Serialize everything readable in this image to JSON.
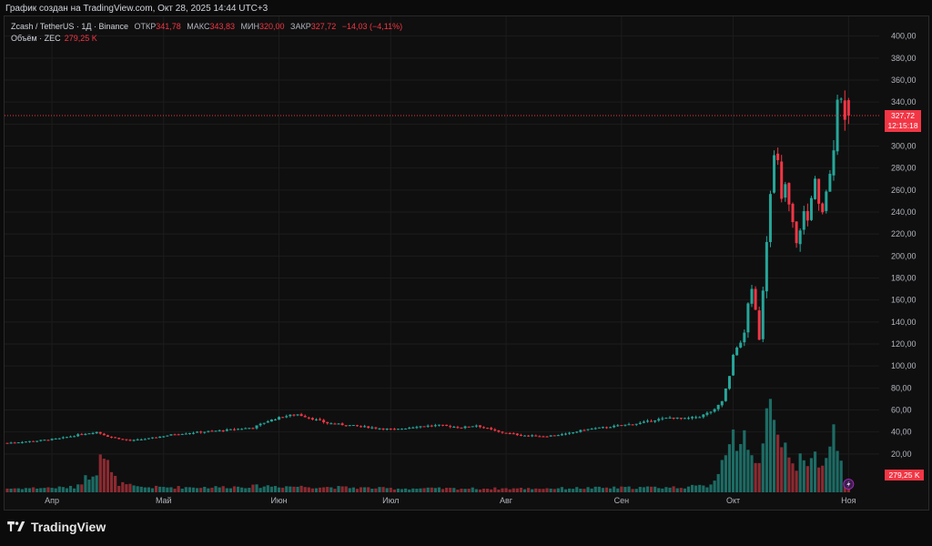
{
  "header": {
    "caption": "График создан на TradingView.com, Окт 28, 2025 14:44 UTC+3"
  },
  "legend": {
    "symbol": "Zcash / TetherUS · 1Д · Binance",
    "open_label": "ОТКР",
    "open_value": "341,78",
    "high_label": "МАКС",
    "high_value": "343,83",
    "low_label": "МИН",
    "low_value": "320,00",
    "close_label": "ЗАКР",
    "close_value": "327,72",
    "change": "−14,03 (−4,11%)",
    "volume_label": "Объём · ZEC",
    "volume_value": "279,25 K"
  },
  "price_tag": {
    "price": "327,72",
    "countdown": "12:15:18"
  },
  "volume_tag": "279,25 K",
  "brand": {
    "name": "TradingView"
  },
  "colors": {
    "up": "#26a69a",
    "down": "#f23645",
    "up_vol": "#1d6b64",
    "down_vol": "#8b2a31",
    "background": "#0f0f0f",
    "grid": "#1c1c1c"
  },
  "chart_data": {
    "type": "candlestick",
    "title": "Zcash / TetherUS · 1Д · Binance",
    "ylim": [
      0,
      410
    ],
    "y_ticks": [
      "20,00",
      "40,00",
      "60,00",
      "80,00",
      "100,00",
      "120,00",
      "140,00",
      "160,00",
      "180,00",
      "200,00",
      "220,00",
      "240,00",
      "260,00",
      "280,00",
      "300,00",
      "320,00",
      "340,00",
      "360,00",
      "380,00",
      "400,00"
    ],
    "y_tick_values": [
      20,
      40,
      60,
      80,
      100,
      120,
      140,
      160,
      180,
      200,
      220,
      240,
      260,
      280,
      300,
      320,
      340,
      360,
      380,
      400
    ],
    "x_ticks": [
      "Апр",
      "Май",
      "Июн",
      "Июл",
      "Авг",
      "Сен",
      "Окт",
      "Ноя"
    ],
    "x_tick_days": [
      12,
      42,
      73,
      103,
      134,
      165,
      195,
      226
    ],
    "last_price": 327.72,
    "anchors_close": [
      [
        0,
        30
      ],
      [
        8,
        32
      ],
      [
        14,
        34
      ],
      [
        20,
        38
      ],
      [
        24,
        40
      ],
      [
        27,
        36
      ],
      [
        33,
        32
      ],
      [
        38,
        34
      ],
      [
        45,
        38
      ],
      [
        52,
        40
      ],
      [
        60,
        42
      ],
      [
        66,
        44
      ],
      [
        70,
        50
      ],
      [
        74,
        54
      ],
      [
        78,
        56
      ],
      [
        82,
        52
      ],
      [
        86,
        48
      ],
      [
        92,
        46
      ],
      [
        98,
        44
      ],
      [
        104,
        42
      ],
      [
        110,
        45
      ],
      [
        116,
        46
      ],
      [
        122,
        44
      ],
      [
        126,
        46
      ],
      [
        132,
        40
      ],
      [
        138,
        37
      ],
      [
        144,
        36
      ],
      [
        150,
        38
      ],
      [
        155,
        42
      ],
      [
        160,
        44
      ],
      [
        165,
        46
      ],
      [
        170,
        48
      ],
      [
        174,
        51
      ],
      [
        178,
        53
      ],
      [
        182,
        52
      ],
      [
        186,
        54
      ],
      [
        188,
        57
      ],
      [
        190,
        60
      ],
      [
        192,
        68
      ],
      [
        194,
        90
      ],
      [
        195,
        110
      ],
      [
        196,
        118
      ],
      [
        197,
        120
      ],
      [
        198,
        130
      ],
      [
        199,
        158
      ],
      [
        200,
        168
      ],
      [
        201,
        150
      ],
      [
        202,
        125
      ],
      [
        203,
        170
      ],
      [
        204,
        215
      ],
      [
        205,
        260
      ],
      [
        206,
        290
      ],
      [
        207,
        285
      ],
      [
        208,
        250
      ],
      [
        209,
        265
      ],
      [
        210,
        245
      ],
      [
        211,
        230
      ],
      [
        212,
        210
      ],
      [
        213,
        225
      ],
      [
        214,
        240
      ],
      [
        215,
        232
      ],
      [
        216,
        255
      ],
      [
        217,
        268
      ],
      [
        218,
        245
      ],
      [
        219,
        238
      ],
      [
        220,
        260
      ],
      [
        221,
        272
      ],
      [
        222,
        300
      ],
      [
        223,
        345
      ],
      [
        224,
        342
      ],
      [
        225,
        327.72
      ]
    ],
    "volume_anchors": [
      [
        0,
        3
      ],
      [
        18,
        4
      ],
      [
        24,
        18
      ],
      [
        25,
        38
      ],
      [
        26,
        28
      ],
      [
        27,
        22
      ],
      [
        28,
        14
      ],
      [
        30,
        7
      ],
      [
        35,
        4
      ],
      [
        55,
        4
      ],
      [
        70,
        5
      ],
      [
        105,
        3
      ],
      [
        140,
        3
      ],
      [
        180,
        4
      ],
      [
        188,
        5
      ],
      [
        190,
        10
      ],
      [
        192,
        24
      ],
      [
        194,
        48
      ],
      [
        195,
        62
      ],
      [
        196,
        40
      ],
      [
        197,
        30
      ],
      [
        198,
        38
      ],
      [
        199,
        34
      ],
      [
        200,
        26
      ],
      [
        201,
        30
      ],
      [
        202,
        30
      ],
      [
        203,
        38
      ],
      [
        204,
        60
      ],
      [
        205,
        90
      ],
      [
        206,
        58
      ],
      [
        207,
        40
      ],
      [
        208,
        30
      ],
      [
        209,
        36
      ],
      [
        210,
        30
      ],
      [
        211,
        32
      ],
      [
        212,
        22
      ],
      [
        213,
        28
      ],
      [
        214,
        20
      ],
      [
        215,
        16
      ],
      [
        216,
        24
      ],
      [
        217,
        30
      ],
      [
        218,
        22
      ],
      [
        219,
        20
      ],
      [
        220,
        34
      ],
      [
        221,
        44
      ],
      [
        222,
        58
      ],
      [
        223,
        30
      ],
      [
        224,
        22
      ],
      [
        225,
        10
      ]
    ],
    "days": 226
  }
}
